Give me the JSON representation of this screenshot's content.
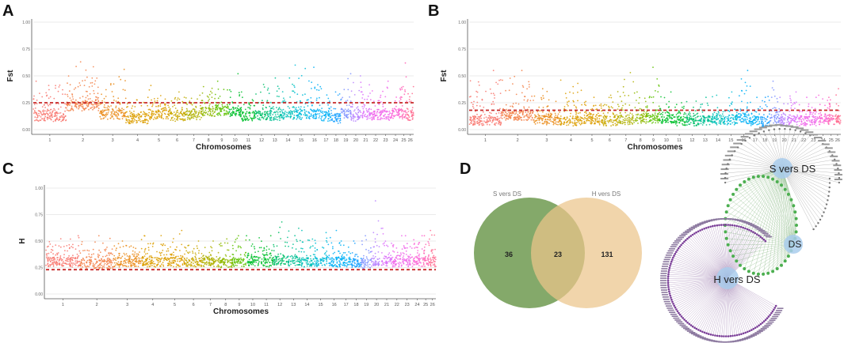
{
  "panels": {
    "a": {
      "letter": "A"
    },
    "b": {
      "letter": "B"
    },
    "c": {
      "letter": "C"
    },
    "d": {
      "letter": "D"
    }
  },
  "colors": {
    "threshold": "#c62828",
    "grid": "#e4e4e4",
    "axis": "#555555",
    "venn_left": "#6f9a50",
    "venn_right": "#ecc58a",
    "network_hub": "#a9cdec",
    "network_edge_s": "#bdbdbd",
    "network_edge_h": "#8e6aa3",
    "network_node_green": "#4caf50",
    "network_node_purple": "#7b3f98",
    "chrom_palette": [
      "#f8766d",
      "#f3824a",
      "#ea8c1b",
      "#dc9d00",
      "#c9a800",
      "#afb000",
      "#8fb900",
      "#5ec100",
      "#00c02c",
      "#00be67",
      "#00c094",
      "#00c1b8",
      "#00bcd8",
      "#00b0f6",
      "#18a0ff",
      "#8094ff",
      "#b983ff",
      "#dc71fa",
      "#f066ea",
      "#fb61d7",
      "#ff65b6",
      "#ff6c91"
    ]
  },
  "chart_data": [
    {
      "id": "A",
      "type": "scatter",
      "subtype": "manhattan",
      "ylabel": "Fst",
      "xlabel": "Chromosomes",
      "ylim": [
        0,
        1
      ],
      "yticks": [
        "0.00",
        "0.25",
        "0.50",
        "0.75",
        "1.00"
      ],
      "ytick_values": [
        0,
        0.25,
        0.5,
        0.75,
        1
      ],
      "threshold": 0.25,
      "chromosomes": [
        "1",
        "2",
        "3",
        "4",
        "5",
        "6",
        "7",
        "8",
        "9",
        "10",
        "11",
        "12",
        "13",
        "14",
        "15",
        "16",
        "17",
        "18",
        "19",
        "20",
        "21",
        "22",
        "23",
        "24",
        "25",
        "26"
      ],
      "chrom_widths": [
        10,
        10,
        8,
        7,
        6,
        5,
        5,
        4,
        4,
        4,
        4,
        4,
        4,
        4,
        4,
        4,
        3,
        3,
        3,
        3,
        3,
        3,
        3,
        3,
        2,
        2
      ],
      "baseline": [
        0.12,
        0.22,
        0.14,
        0.1,
        0.14,
        0.12,
        0.13,
        0.16,
        0.17,
        0.16,
        0.12,
        0.13,
        0.13,
        0.14,
        0.14,
        0.14,
        0.12,
        0.1,
        0.15,
        0.12,
        0.14,
        0.13,
        0.13,
        0.14,
        0.14,
        0.13
      ],
      "peaks": [
        0.45,
        0.63,
        0.56,
        0.3,
        0.41,
        0.35,
        0.32,
        0.4,
        0.45,
        0.52,
        0.3,
        0.42,
        0.48,
        0.48,
        0.6,
        0.58,
        0.38,
        0.35,
        0.52,
        0.5,
        0.44,
        0.36,
        0.45,
        0.38,
        0.62,
        0.4
      ]
    },
    {
      "id": "B",
      "type": "scatter",
      "subtype": "manhattan",
      "ylabel": "Fst",
      "xlabel": "Chromosomes",
      "ylim": [
        0,
        1
      ],
      "yticks": [
        "0.00",
        "0.25",
        "0.50",
        "0.75",
        "1.00"
      ],
      "ytick_values": [
        0,
        0.25,
        0.5,
        0.75,
        1
      ],
      "threshold": 0.18,
      "chromosomes": [
        "1",
        "2",
        "3",
        "4",
        "5",
        "6",
        "7",
        "8",
        "9",
        "10",
        "11",
        "12",
        "13",
        "14",
        "15",
        "16",
        "17",
        "18",
        "19",
        "20",
        "21",
        "22",
        "23",
        "24",
        "25",
        "26"
      ],
      "chrom_widths": [
        10,
        10,
        8,
        7,
        6,
        5,
        5,
        4,
        4,
        4,
        4,
        4,
        4,
        4,
        4,
        4,
        3,
        3,
        3,
        3,
        3,
        3,
        3,
        3,
        2,
        2
      ],
      "baseline": [
        0.08,
        0.13,
        0.09,
        0.08,
        0.09,
        0.08,
        0.09,
        0.1,
        0.1,
        0.1,
        0.08,
        0.08,
        0.08,
        0.09,
        0.09,
        0.1,
        0.08,
        0.07,
        0.1,
        0.08,
        0.09,
        0.08,
        0.08,
        0.09,
        0.09,
        0.08
      ],
      "peaks": [
        0.55,
        0.55,
        0.38,
        0.46,
        0.3,
        0.32,
        0.53,
        0.35,
        0.58,
        0.35,
        0.25,
        0.26,
        0.3,
        0.32,
        0.35,
        0.55,
        0.3,
        0.3,
        0.45,
        0.3,
        0.35,
        0.3,
        0.3,
        0.32,
        0.3,
        0.38
      ]
    },
    {
      "id": "C",
      "type": "scatter",
      "subtype": "manhattan",
      "ylabel": "H",
      "xlabel": "Chromosomes",
      "ylim": [
        0,
        1
      ],
      "yticks": [
        "0.00",
        "0.25",
        "0.50",
        "0.75",
        "1.00"
      ],
      "ytick_values": [
        0,
        0.25,
        0.5,
        0.75,
        1
      ],
      "threshold": 0.23,
      "chromosomes": [
        "1",
        "2",
        "3",
        "4",
        "5",
        "6",
        "7",
        "8",
        "9",
        "10",
        "11",
        "12",
        "13",
        "14",
        "15",
        "16",
        "17",
        "18",
        "19",
        "20",
        "21",
        "22",
        "23",
        "24",
        "25",
        "26"
      ],
      "chrom_widths": [
        10,
        10,
        8,
        7,
        6,
        5,
        5,
        4,
        4,
        4,
        4,
        4,
        4,
        4,
        4,
        4,
        3,
        3,
        3,
        3,
        3,
        3,
        3,
        3,
        2,
        2
      ],
      "baseline": [
        0.3,
        0.28,
        0.3,
        0.3,
        0.3,
        0.3,
        0.3,
        0.29,
        0.3,
        0.31,
        0.3,
        0.31,
        0.31,
        0.3,
        0.3,
        0.3,
        0.3,
        0.29,
        0.28,
        0.3,
        0.3,
        0.3,
        0.3,
        0.3,
        0.3,
        0.3
      ],
      "peaks": [
        0.55,
        0.55,
        0.5,
        0.55,
        0.6,
        0.5,
        0.5,
        0.52,
        0.55,
        0.55,
        0.55,
        0.68,
        0.62,
        0.6,
        0.58,
        0.6,
        0.5,
        0.5,
        0.55,
        0.88,
        0.62,
        0.55,
        0.55,
        0.55,
        0.55,
        0.6
      ]
    },
    {
      "id": "D-venn",
      "type": "venn",
      "sets": [
        {
          "name": "S vers DS",
          "only": 36
        },
        {
          "name": "H vers DS",
          "only": 131
        }
      ],
      "intersection": 23
    },
    {
      "id": "D-network",
      "type": "network",
      "hubs": [
        "S vers DS",
        "DS",
        "H vers DS"
      ],
      "node_counts": {
        "s_only": 36,
        "shared": 23,
        "h_only": 131
      }
    }
  ]
}
